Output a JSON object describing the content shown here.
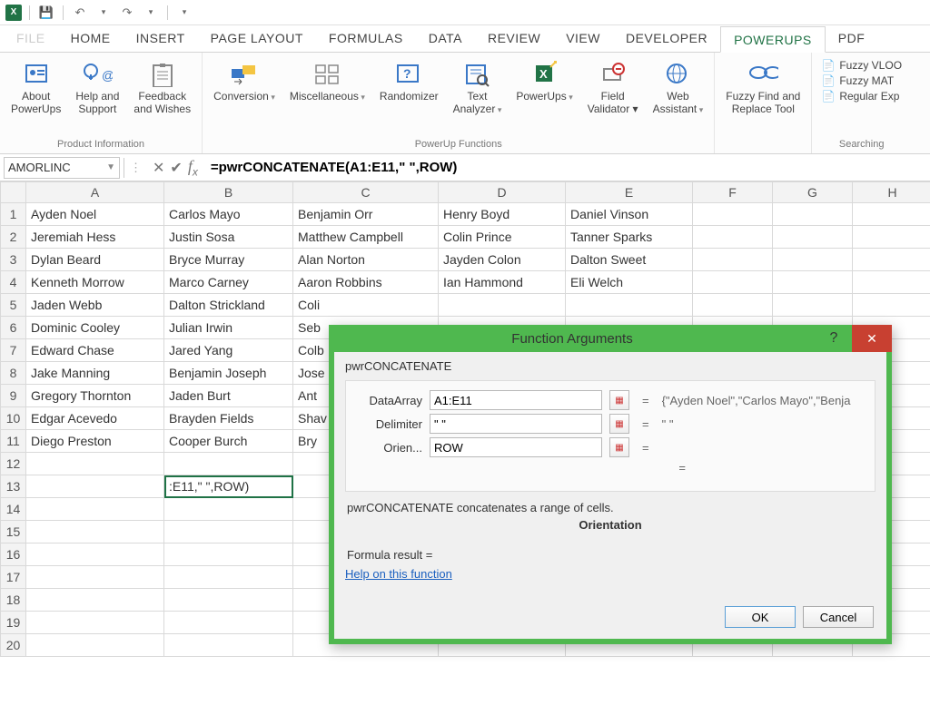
{
  "qat": {
    "save_icon": "💾",
    "undo_icon": "↶",
    "redo_icon": "↷",
    "dd_icon": "▾"
  },
  "tabs": {
    "file": "FILE",
    "home": "HOME",
    "insert": "INSERT",
    "page_layout": "PAGE LAYOUT",
    "formulas": "FORMULAS",
    "data": "DATA",
    "review": "REVIEW",
    "view": "VIEW",
    "developer": "DEVELOPER",
    "powerups": "POWERUPS",
    "pdf": "PDF"
  },
  "ribbon": {
    "groups": {
      "product_info": {
        "label": "Product Information",
        "about": "About\nPowerUps",
        "help": "Help and\nSupport",
        "feedback": "Feedback\nand Wishes"
      },
      "powerup_fns": {
        "label": "PowerUp Functions",
        "conversion": "Conversion",
        "misc": "Miscellaneous",
        "random": "Randomizer",
        "text": "Text\nAnalyzer",
        "powerups": "PowerUps",
        "field": "Field\nValidator",
        "web": "Web\nAssistant"
      },
      "fuzzy": {
        "label": "",
        "tool": "Fuzzy Find and\nReplace Tool"
      },
      "searching": {
        "label": "Searching",
        "vlookup": "Fuzzy VLOO",
        "match": "Fuzzy MAT",
        "regex": "Regular Exp"
      }
    }
  },
  "formula_bar": {
    "name_box": "AMORLINC",
    "formula": "=pwrCONCATENATE(A1:E11,\" \",ROW)"
  },
  "columns": [
    "A",
    "B",
    "C",
    "D",
    "E",
    "F",
    "G",
    "H"
  ],
  "rows": [
    1,
    2,
    3,
    4,
    5,
    6,
    7,
    8,
    9,
    10,
    11,
    12,
    13,
    14,
    15,
    16,
    17,
    18,
    19,
    20
  ],
  "cells": {
    "r1": [
      "Ayden Noel",
      "Carlos Mayo",
      "Benjamin Orr",
      "Henry Boyd",
      "Daniel Vinson",
      "",
      "",
      ""
    ],
    "r2": [
      "Jeremiah Hess",
      "Justin Sosa",
      "Matthew Campbell",
      "Colin Prince",
      "Tanner Sparks",
      "",
      "",
      ""
    ],
    "r3": [
      "Dylan Beard",
      "Bryce Murray",
      "Alan Norton",
      "Jayden Colon",
      "Dalton Sweet",
      "",
      "",
      ""
    ],
    "r4": [
      "Kenneth Morrow",
      "Marco Carney",
      "Aaron Robbins",
      "Ian Hammond",
      "Eli Welch",
      "",
      "",
      ""
    ],
    "r5": [
      "Jaden Webb",
      "Dalton Strickland",
      "Coli",
      "",
      "",
      "",
      "",
      ""
    ],
    "r6": [
      "Dominic Cooley",
      "Julian Irwin",
      "Seb",
      "",
      "",
      "",
      "",
      ""
    ],
    "r7": [
      "Edward Chase",
      "Jared Yang",
      "Colb",
      "",
      "",
      "",
      "",
      ""
    ],
    "r8": [
      "Jake Manning",
      "Benjamin Joseph",
      "Jose",
      "",
      "",
      "",
      "",
      ""
    ],
    "r9": [
      "Gregory Thornton",
      "Jaden Burt",
      "Ant",
      "",
      "",
      "",
      "",
      ""
    ],
    "r10": [
      "Edgar Acevedo",
      "Brayden Fields",
      "Shav",
      "",
      "",
      "",
      "",
      ""
    ],
    "r11": [
      "Diego Preston",
      "Cooper Burch",
      "Bry",
      "",
      "",
      "",
      "",
      ""
    ],
    "r12": [
      "",
      "",
      "",
      "",
      "",
      "",
      "",
      ""
    ],
    "r13": [
      "",
      ":E11,\" \",ROW)",
      "",
      "",
      "",
      "",
      "",
      ""
    ],
    "r14": [
      "",
      "",
      "",
      "",
      "",
      "",
      "",
      ""
    ],
    "r15": [
      "",
      "",
      "",
      "",
      "",
      "",
      "",
      ""
    ],
    "r16": [
      "",
      "",
      "",
      "",
      "",
      "",
      "",
      ""
    ],
    "r17": [
      "",
      "",
      "",
      "",
      "",
      "",
      "",
      ""
    ],
    "r18": [
      "",
      "",
      "",
      "",
      "",
      "",
      "",
      ""
    ],
    "r19": [
      "",
      "",
      "",
      "",
      "",
      "",
      "",
      ""
    ],
    "r20": [
      "",
      "",
      "",
      "",
      "",
      "",
      "",
      ""
    ]
  },
  "dialog": {
    "title": "Function Arguments",
    "fn_name": "pwrCONCATENATE",
    "args": [
      {
        "label": "DataArray",
        "value": "A1:E11",
        "result": "{\"Ayden Noel\",\"Carlos Mayo\",\"Benja"
      },
      {
        "label": "Delimiter",
        "value": "\" \"",
        "result": "\" \""
      },
      {
        "label": "Orien...",
        "value": "ROW",
        "result": ""
      }
    ],
    "description": "pwrCONCATENATE concatenates a range of cells.",
    "orientation_label": "Orientation",
    "formula_result_label": "Formula result =",
    "help_link": "Help on this function",
    "ok": "OK",
    "cancel": "Cancel"
  },
  "colors": {
    "green": "#4fb84f",
    "excel": "#217346",
    "close_red": "#c84031",
    "link": "#1a5fbf"
  }
}
